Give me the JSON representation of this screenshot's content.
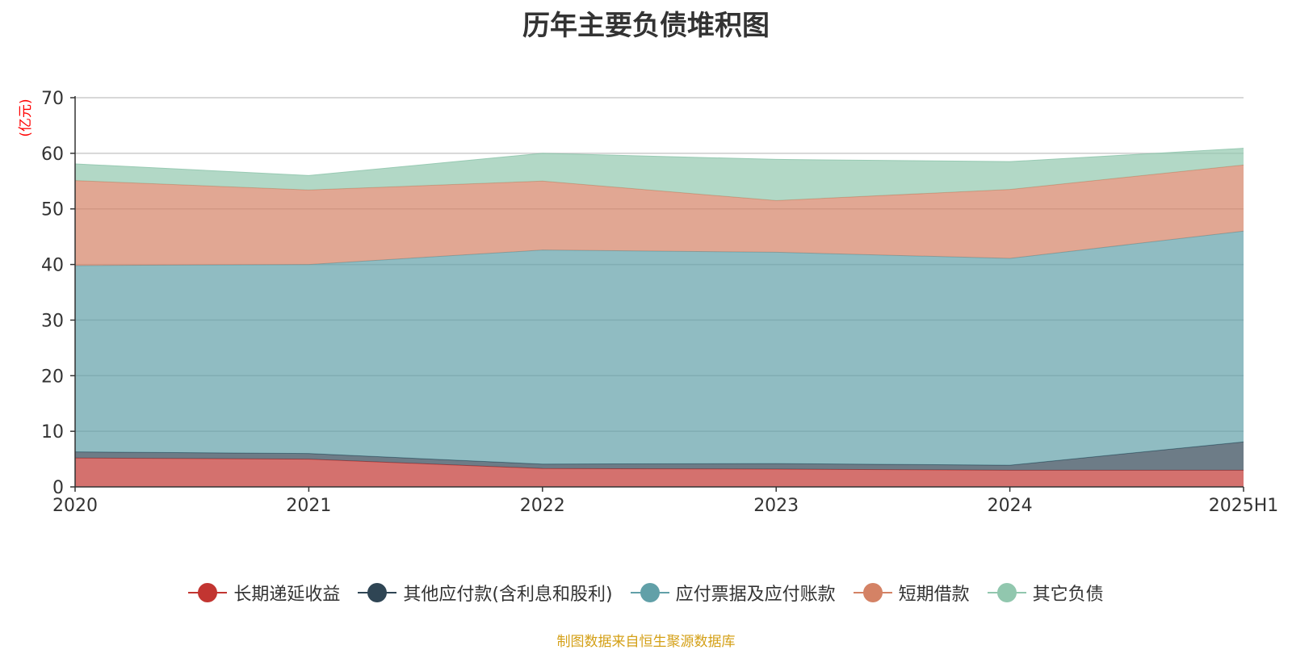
{
  "chart_data": {
    "type": "area",
    "stacked": true,
    "title": "历年主要负债堆积图",
    "unit_label": "(亿元)",
    "categories": [
      "2020",
      "2021",
      "2022",
      "2023",
      "2024",
      "2025H1"
    ],
    "ylim": [
      0,
      70
    ],
    "yticks": [
      0,
      10,
      20,
      30,
      40,
      50,
      60,
      70
    ],
    "grid": true,
    "legend_position": "bottom",
    "series": [
      {
        "name": "长期递延收益",
        "color": "#c23531",
        "values": [
          5.2,
          5.0,
          3.3,
          3.2,
          3.0,
          3.0
        ]
      },
      {
        "name": "其他应付款(含利息和股利)",
        "color": "#2f4554",
        "values": [
          1.1,
          1.0,
          0.8,
          1.0,
          0.9,
          5.1
        ]
      },
      {
        "name": "应付票据及应付账款",
        "color": "#61a0a8",
        "values": [
          33.5,
          34.0,
          38.5,
          38.0,
          37.2,
          37.9
        ]
      },
      {
        "name": "短期借款",
        "color": "#d48265",
        "values": [
          15.3,
          13.4,
          12.4,
          9.3,
          12.4,
          11.9
        ]
      },
      {
        "name": "其它负债",
        "color": "#91c7ae",
        "values": [
          3.0,
          2.6,
          5.0,
          7.4,
          5.0,
          3.0
        ]
      }
    ]
  },
  "source_note": "制图数据来自恒生聚源数据库"
}
